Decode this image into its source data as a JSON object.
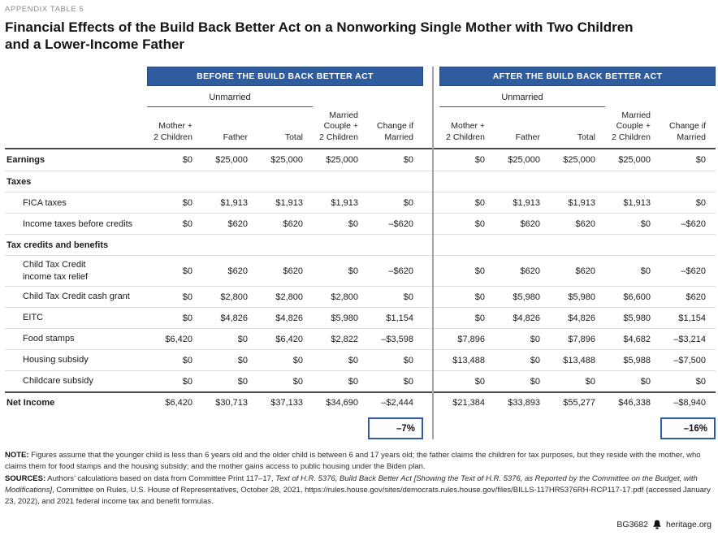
{
  "eyebrow": "APPENDIX TABLE 5",
  "title": {
    "line1": "Financial Effects of the Build Back Better Act on a Nonworking Single Mother with Two Children",
    "line2": "and a Lower-Income Father"
  },
  "panels": {
    "before_label": "BEFORE THE BUILD BACK BETTER ACT",
    "after_label": "AFTER THE BUILD BACK BETTER ACT"
  },
  "table": {
    "group_header": "Unmarried",
    "column_headers": [
      [
        "Mother +",
        "2 Children"
      ],
      [
        "Father"
      ],
      [
        "Total"
      ],
      [
        "Married",
        "Couple +",
        "2 Children"
      ],
      [
        "Change if",
        "Married"
      ]
    ],
    "rows": [
      {
        "label": "Earnings",
        "type": "bold",
        "before": [
          "$0",
          "$25,000",
          "$25,000",
          "$25,000",
          "$0"
        ],
        "after": [
          "$0",
          "$25,000",
          "$25,000",
          "$25,000",
          "$0"
        ]
      },
      {
        "label": "Taxes",
        "type": "section"
      },
      {
        "label": "FICA taxes",
        "type": "item",
        "before": [
          "$0",
          "$1,913",
          "$1,913",
          "$1,913",
          "$0"
        ],
        "after": [
          "$0",
          "$1,913",
          "$1,913",
          "$1,913",
          "$0"
        ]
      },
      {
        "label": "Income taxes before credits",
        "type": "item",
        "before": [
          "$0",
          "$620",
          "$620",
          "$0",
          "–$620"
        ],
        "after": [
          "$0",
          "$620",
          "$620",
          "$0",
          "–$620"
        ]
      },
      {
        "label": "Tax credits and benefits",
        "type": "section"
      },
      {
        "label": "Child Tax Credit\nincome tax relief",
        "type": "item",
        "before": [
          "$0",
          "$620",
          "$620",
          "$0",
          "–$620"
        ],
        "after": [
          "$0",
          "$620",
          "$620",
          "$0",
          "–$620"
        ]
      },
      {
        "label": "Child Tax Credit cash grant",
        "type": "item",
        "before": [
          "$0",
          "$2,800",
          "$2,800",
          "$2,800",
          "$0"
        ],
        "after": [
          "$0",
          "$5,980",
          "$5,980",
          "$6,600",
          "$620"
        ]
      },
      {
        "label": "EITC",
        "type": "item",
        "before": [
          "$0",
          "$4,826",
          "$4,826",
          "$5,980",
          "$1,154"
        ],
        "after": [
          "$0",
          "$4,826",
          "$4,826",
          "$5,980",
          "$1,154"
        ]
      },
      {
        "label": "Food stamps",
        "type": "item",
        "before": [
          "$6,420",
          "$0",
          "$6,420",
          "$2,822",
          "–$3,598"
        ],
        "after": [
          "$7,896",
          "$0",
          "$7,896",
          "$4,682",
          "–$3,214"
        ]
      },
      {
        "label": "Housing subsidy",
        "type": "item",
        "before": [
          "$0",
          "$0",
          "$0",
          "$0",
          "$0"
        ],
        "after": [
          "$13,488",
          "$0",
          "$13,488",
          "$5,988",
          "–$7,500"
        ]
      },
      {
        "label": "Childcare subsidy",
        "type": "item",
        "before": [
          "$0",
          "$0",
          "$0",
          "$0",
          "$0"
        ],
        "after": [
          "$0",
          "$0",
          "$0",
          "$0",
          "$0"
        ]
      },
      {
        "label": "Net Income",
        "type": "total",
        "before": [
          "$6,420",
          "$30,713",
          "$37,133",
          "$34,690",
          "–$2,444"
        ],
        "after": [
          "$21,384",
          "$33,893",
          "$55,277",
          "$46,338",
          "–$8,940"
        ]
      }
    ],
    "summary": {
      "before_change_pct": "–7%",
      "after_change_pct": "–16%"
    }
  },
  "notes": {
    "note_label": "NOTE:",
    "note_text": " Figures assume that the younger child is less than 6 years old and the older child is between 6 and 17 years old; the father claims the children for tax purposes, but they reside with the mother, who claims them for food stamps and the housing subsidy; and the mother gains access to public housing under the Biden plan.",
    "sources_label": "SOURCES:",
    "sources_segments": [
      {
        "text": " Authors’ calculations based on data from Committee Print 117–17, ",
        "italic": false
      },
      {
        "text": "Text of H.R. 5376, Build Back Better Act [Showing the Text of H.R. 5376, as Reported by the Committee on the Budget, with Modifications]",
        "italic": true
      },
      {
        "text": ", Committee on Rules, U.S. House of Representatives, October 28, 2021, https://rules.house.gov/sites/democrats.rules.house.gov/files/BILLS-117HR5376RH-RCP117-17.pdf (accessed January 23, 2022), and 2021 federal income tax and benefit formulas.",
        "italic": false
      }
    ]
  },
  "footer": {
    "doc_id": "BG3682",
    "site": "heritage.org",
    "bell_icon": "liberty-bell-icon"
  },
  "colors": {
    "brand_blue": "#2e5c9f",
    "divider_gray": "#a3a3a3"
  }
}
